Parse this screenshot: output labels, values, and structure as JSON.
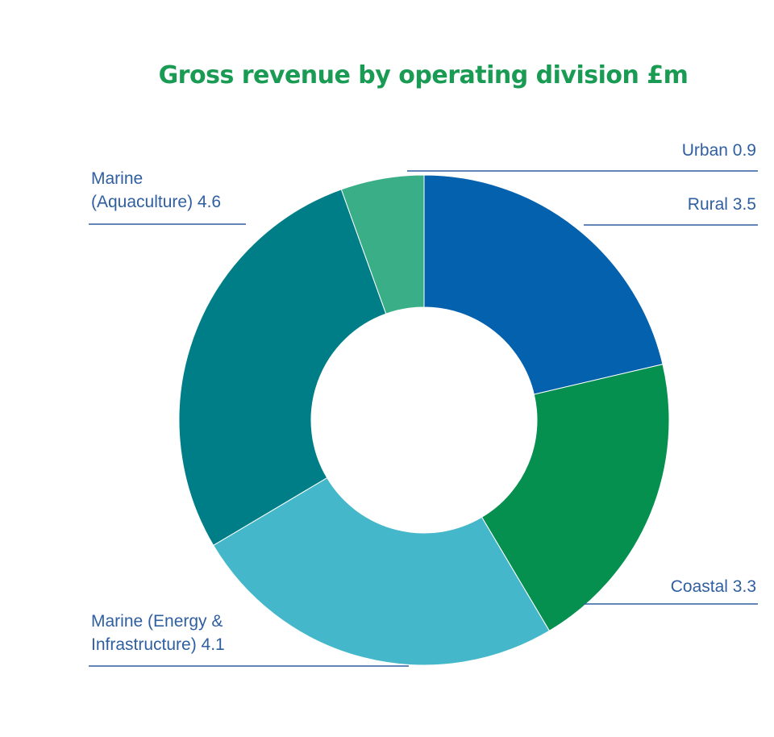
{
  "chart_data": {
    "type": "pie",
    "style": "donut",
    "title": "Gross revenue by operating division £m",
    "title_color": "#1a9b54",
    "label_color": "#2f5fa0",
    "categories": [
      "Urban",
      "Rural",
      "Coastal",
      "Marine (Energy & Infrastructure)",
      "Marine (Aquaculture)"
    ],
    "values": [
      0.9,
      3.5,
      3.3,
      4.1,
      4.6
    ],
    "colors": [
      "#3aaf87",
      "#0461ae",
      "#05904f",
      "#44b8ca",
      "#007e87"
    ],
    "labels": {
      "urban": "Urban 0.9",
      "rural": "Rural 3.5",
      "coastal": "Coastal 3.3",
      "energy_line1": "Marine (Energy &",
      "energy_line2": "Infrastructure) 4.1",
      "aqua_line1": "Marine",
      "aqua_line2": "(Aquaculture) 4.6"
    }
  }
}
